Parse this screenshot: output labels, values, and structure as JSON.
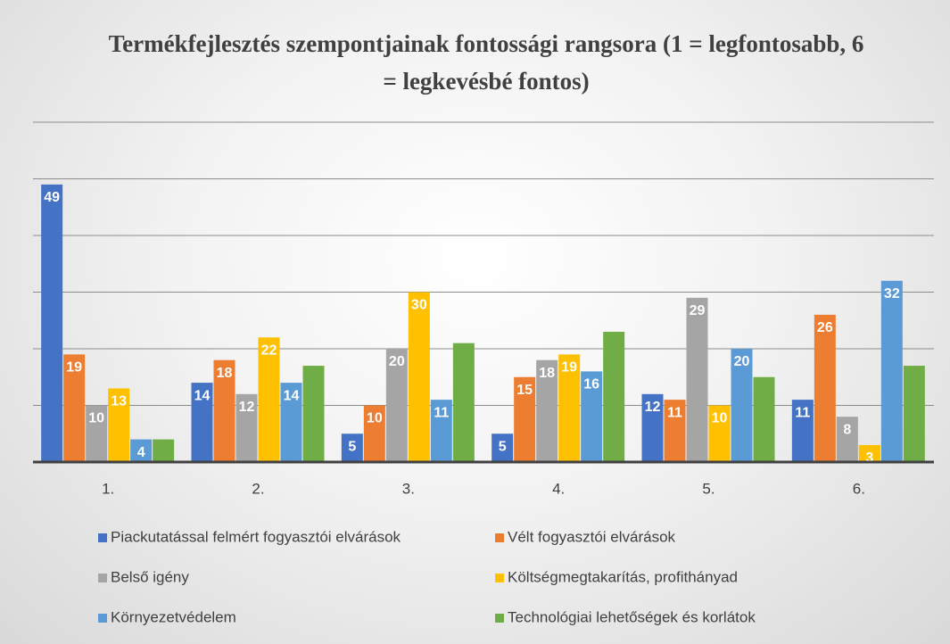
{
  "chart_data": {
    "type": "bar",
    "title": "Termékfejlesztés szempontjainak fontossági rangsora (1 = legfontosabb, 6 = legkevésbé fontos)",
    "categories": [
      "1.",
      "2.",
      "3.",
      "4.",
      "5.",
      "6."
    ],
    "series": [
      {
        "name": "Piackutatással felmért fogyasztói elvárások",
        "color": "#4472c4",
        "values": [
          49,
          14,
          5,
          5,
          12,
          11
        ],
        "labels": true
      },
      {
        "name": "Vélt fogyasztói elvárások",
        "color": "#ed7d31",
        "values": [
          19,
          18,
          10,
          15,
          11,
          26
        ],
        "labels": true
      },
      {
        "name": "Belső igény",
        "color": "#a5a5a5",
        "values": [
          10,
          12,
          20,
          18,
          29,
          8
        ],
        "labels": true
      },
      {
        "name": "Költségmegtakarítás, profithányad",
        "color": "#ffc000",
        "values": [
          13,
          22,
          30,
          19,
          10,
          3
        ],
        "labels": true
      },
      {
        "name": "Környezetvédelem",
        "color": "#5b9bd5",
        "values": [
          4,
          14,
          11,
          16,
          20,
          32
        ],
        "labels": true
      },
      {
        "name": "Technológiai lehetőségek és korlátok",
        "color": "#70ad47",
        "values": [
          4,
          17,
          21,
          23,
          15,
          17
        ],
        "labels": false
      }
    ],
    "ylim": [
      0,
      60
    ],
    "yticks": [
      0,
      10,
      20,
      30,
      40,
      50,
      60
    ],
    "grid": true,
    "legend": "bottom"
  }
}
